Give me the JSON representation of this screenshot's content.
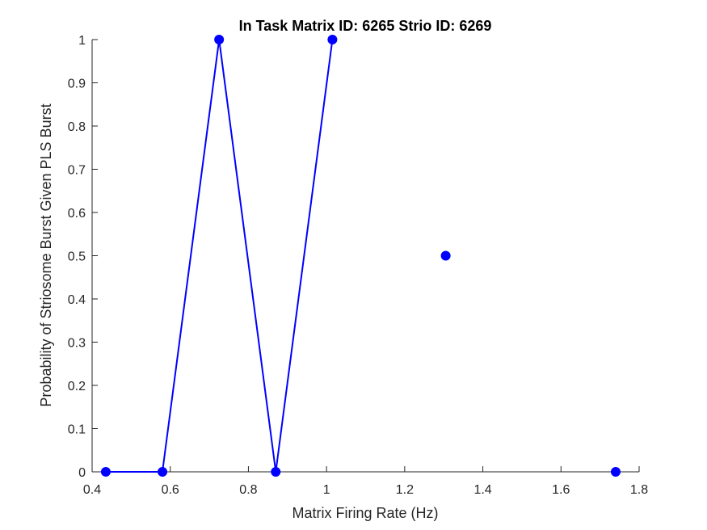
{
  "chart_data": {
    "type": "line",
    "title": "In Task Matrix ID: 6265 Strio ID: 6269",
    "xlabel": "Matrix Firing Rate (Hz)",
    "ylabel": "Probability of Striosome Burst Given PLS Burst",
    "xlim": [
      0.4,
      1.8
    ],
    "ylim": [
      0,
      1
    ],
    "xticks": [
      "0.4",
      "0.6",
      "0.8",
      "1",
      "1.2",
      "1.4",
      "1.6",
      "1.8"
    ],
    "yticks": [
      "0",
      "0.1",
      "0.2",
      "0.3",
      "0.4",
      "0.5",
      "0.6",
      "0.7",
      "0.8",
      "0.9",
      "1"
    ],
    "grid": false,
    "legend": "none",
    "color": "#0000ff",
    "series": [
      {
        "x": [
          0.435,
          0.58,
          0.725,
          0.87,
          1.015,
          1.305,
          1.74
        ],
        "y": [
          0,
          0,
          1,
          0,
          1,
          0.5,
          0
        ],
        "connected": [
          true,
          true,
          true,
          true,
          true,
          false,
          false
        ]
      }
    ]
  }
}
